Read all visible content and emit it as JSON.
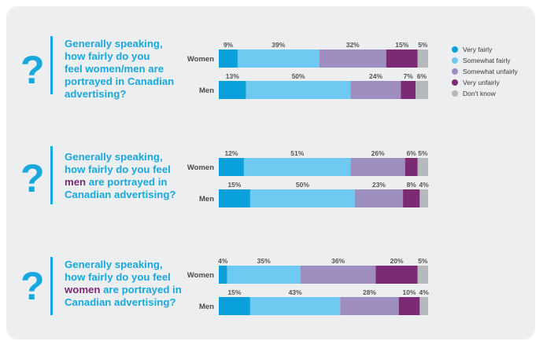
{
  "chart_data": [
    {
      "type": "bar",
      "orientation": "horizontal-stacked-100",
      "question_lines": [
        "Generally speaking,",
        "how fairly do you",
        "feel women/men are",
        "portrayed in Canadian",
        "advertising?"
      ],
      "highlight_word": "",
      "categories": [
        "Women",
        "Men"
      ],
      "series": [
        {
          "name": "Very fairly",
          "values": [
            9,
            13
          ]
        },
        {
          "name": "Somewhat fairly",
          "values": [
            39,
            50
          ]
        },
        {
          "name": "Somewhat unfairly",
          "values": [
            32,
            24
          ]
        },
        {
          "name": "Very unfairly",
          "values": [
            15,
            7
          ]
        },
        {
          "name": "Don't know",
          "values": [
            5,
            6
          ]
        }
      ]
    },
    {
      "type": "bar",
      "orientation": "horizontal-stacked-100",
      "question_lines": [
        "Generally speaking,",
        "how fairly do you feel",
        "men are portrayed in",
        "Canadian advertising?"
      ],
      "highlight_word": "men",
      "categories": [
        "Women",
        "Men"
      ],
      "series": [
        {
          "name": "Very fairly",
          "values": [
            12,
            15
          ]
        },
        {
          "name": "Somewhat fairly",
          "values": [
            51,
            50
          ]
        },
        {
          "name": "Somewhat unfairly",
          "values": [
            26,
            23
          ]
        },
        {
          "name": "Very unfairly",
          "values": [
            6,
            8
          ]
        },
        {
          "name": "Don't know",
          "values": [
            5,
            4
          ]
        }
      ]
    },
    {
      "type": "bar",
      "orientation": "horizontal-stacked-100",
      "question_lines": [
        "Generally speaking,",
        "how fairly do you feel",
        "women are portrayed in",
        "Canadian advertising?"
      ],
      "highlight_word": "women",
      "categories": [
        "Women",
        "Men"
      ],
      "series": [
        {
          "name": "Very fairly",
          "values": [
            4,
            15
          ]
        },
        {
          "name": "Somewhat fairly",
          "values": [
            35,
            43
          ]
        },
        {
          "name": "Somewhat unfairly",
          "values": [
            36,
            28
          ]
        },
        {
          "name": "Very unfairly",
          "values": [
            20,
            10
          ]
        },
        {
          "name": "Don't know",
          "values": [
            5,
            4
          ]
        }
      ]
    }
  ],
  "question_mark": "?",
  "percent_suffix": "%",
  "legend": [
    {
      "label": "Very fairly",
      "color": "#0aa0dc"
    },
    {
      "label": "Somewhat fairly",
      "color": "#6ecaf0"
    },
    {
      "label": "Somewhat unfairly",
      "color": "#9d8ebf"
    },
    {
      "label": "Very unfairly",
      "color": "#7b2b73"
    },
    {
      "label": "Don't know",
      "color": "#b6b9bc"
    }
  ]
}
